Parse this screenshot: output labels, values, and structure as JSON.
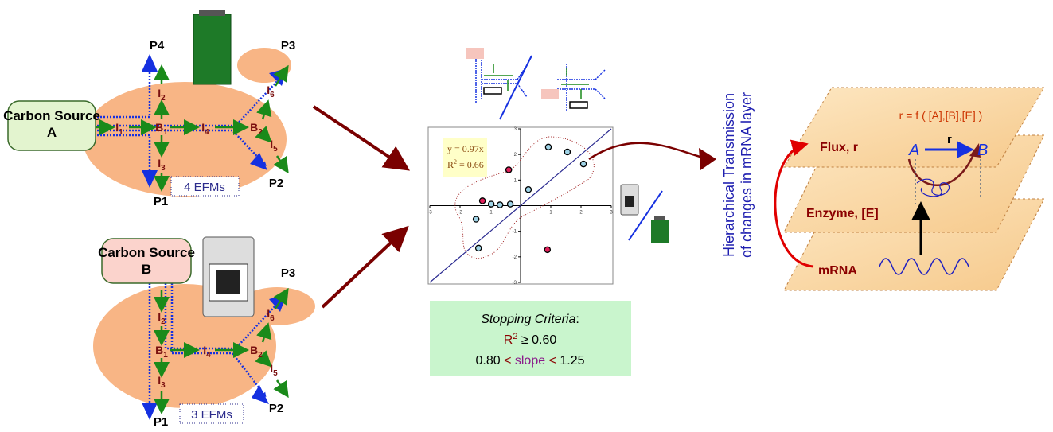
{
  "network_a": {
    "source": "Carbon Source A",
    "products": [
      "P4",
      "P3",
      "P1",
      "P2"
    ],
    "nodes": [
      {
        "base": "I",
        "sub": "1"
      },
      {
        "base": "B",
        "sub": "1"
      },
      {
        "base": "I",
        "sub": "4"
      },
      {
        "base": "B",
        "sub": "2"
      },
      {
        "base": "I",
        "sub": "2"
      },
      {
        "base": "I",
        "sub": "3"
      },
      {
        "base": "I",
        "sub": "6"
      },
      {
        "base": "I",
        "sub": "5"
      }
    ],
    "efms": "4 EFMs"
  },
  "network_b": {
    "source": "Carbon Source B",
    "products": [
      "P3",
      "P1",
      "P2"
    ],
    "nodes": [
      {
        "base": "I",
        "sub": "2"
      },
      {
        "base": "B",
        "sub": "1"
      },
      {
        "base": "I",
        "sub": "4"
      },
      {
        "base": "B",
        "sub": "2"
      },
      {
        "base": "I",
        "sub": "6"
      },
      {
        "base": "I",
        "sub": "5"
      },
      {
        "base": "I",
        "sub": "3"
      }
    ],
    "efms": "3 EFMs"
  },
  "scatter": {
    "xlim": [
      -3,
      3
    ],
    "ylim": [
      -3,
      3
    ],
    "xticks": [
      -3,
      -2,
      -1,
      1,
      2,
      3
    ],
    "yticks": [
      -3,
      -2,
      -1,
      1,
      2,
      3
    ],
    "series": [
      {
        "color": "#9fd3e6",
        "x": [
          0.92,
          1.55,
          2.08,
          0.26,
          -0.97,
          -0.68,
          -0.34,
          -1.47,
          -1.39
        ],
        "y": [
          2.29,
          2.1,
          1.63,
          0.63,
          0.06,
          0.03,
          0.06,
          -0.53,
          -1.66
        ]
      },
      {
        "color": "#e0205a",
        "x": [
          -0.39,
          -1.26,
          0.89
        ],
        "y": [
          1.4,
          0.19,
          -1.72
        ]
      }
    ],
    "fit_equation": "y = 0.97x",
    "fit_r2": {
      "base": "R",
      "sup": "2",
      "rest": " = 0.66"
    }
  },
  "criteria": {
    "title": "Stopping Criteria",
    "colon": ":",
    "r2": {
      "base": "R",
      "sup": "2",
      "rest": " ≥ 0.60"
    },
    "slope": [
      "0.80",
      " < ",
      "slope",
      " < ",
      "1.25"
    ]
  },
  "side_label": [
    "Hierarchical Transmission",
    "of changes in mRNA layer"
  ],
  "layers": {
    "equation": "r = f ( [A],[B],[E] )",
    "flux": "Flux, r",
    "enzyme": "Enzyme, [E]",
    "mrna": "mRNA",
    "a": "A",
    "r": "r",
    "b": "B"
  }
}
